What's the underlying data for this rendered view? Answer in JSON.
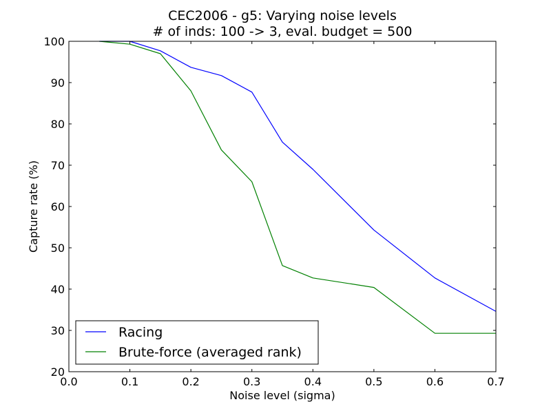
{
  "chart_data": {
    "type": "line",
    "title": "CEC2006 - g5: Varying noise levels",
    "subtitle": "# of inds: 100 -> 3, eval. budget = 500",
    "xlabel": "Noise level (sigma)",
    "ylabel": "Capture rate (%)",
    "xlim": [
      0.0,
      0.7
    ],
    "ylim": [
      20,
      100
    ],
    "xticks": [
      "0.0",
      "0.1",
      "0.2",
      "0.3",
      "0.4",
      "0.5",
      "0.6",
      "0.7"
    ],
    "yticks": [
      "20",
      "30",
      "40",
      "50",
      "60",
      "70",
      "80",
      "90",
      "100"
    ],
    "grid": false,
    "legend_position": "bottom-left",
    "series": [
      {
        "name": "Racing",
        "color": "#0000ff",
        "x": [
          0.05,
          0.1,
          0.15,
          0.2,
          0.25,
          0.3,
          0.35,
          0.4,
          0.5,
          0.6,
          0.7
        ],
        "y": [
          100,
          100,
          97.7,
          93.7,
          91.7,
          87.7,
          75.6,
          69.0,
          54.3,
          42.7,
          34.6
        ]
      },
      {
        "name": "Brute-force (averaged rank)",
        "color": "#008000",
        "x": [
          0.05,
          0.1,
          0.15,
          0.2,
          0.25,
          0.3,
          0.35,
          0.4,
          0.5,
          0.6,
          0.7
        ],
        "y": [
          100,
          99.3,
          97.0,
          88.0,
          73.7,
          66.0,
          45.7,
          42.7,
          40.4,
          29.3,
          29.3
        ]
      }
    ]
  }
}
